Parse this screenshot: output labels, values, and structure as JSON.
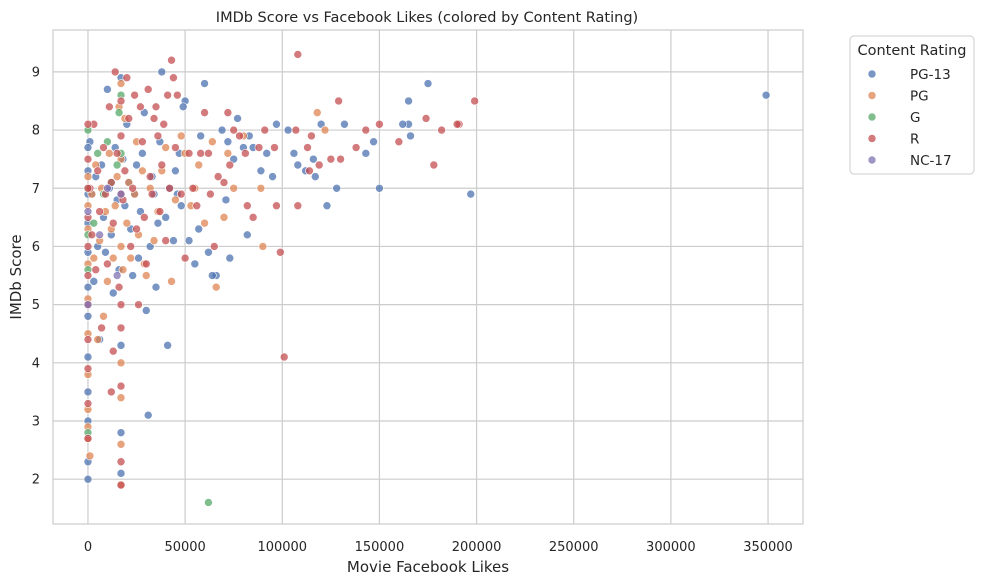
{
  "chart_data": {
    "type": "scatter",
    "title": "IMDb Score vs Facebook Likes (colored by Content Rating)",
    "xlabel": "Movie Facebook Likes",
    "ylabel": "IMDb Score",
    "xlim": [
      -18000,
      368000
    ],
    "ylim": [
      1.23,
      9.72
    ],
    "xticks": [
      0,
      50000,
      100000,
      150000,
      200000,
      250000,
      300000,
      350000
    ],
    "xtick_labels": [
      "0",
      "50000",
      "100000",
      "150000",
      "200000",
      "250000",
      "300000",
      "350000"
    ],
    "yticks": [
      2,
      3,
      4,
      5,
      6,
      7,
      8,
      9
    ],
    "ytick_labels": [
      "2",
      "3",
      "4",
      "5",
      "6",
      "7",
      "8",
      "9"
    ],
    "grid": true,
    "legend": {
      "title": "Content Rating",
      "placement": "outside-top-right"
    },
    "series": [
      {
        "name": "PG-13",
        "color": "#4c72b0",
        "points": [
          [
            349000,
            8.6
          ],
          [
            175000,
            8.8
          ],
          [
            165000,
            8.5
          ],
          [
            166000,
            7.9
          ],
          [
            165000,
            8.1
          ],
          [
            162000,
            8.1
          ],
          [
            150000,
            7.0
          ],
          [
            147000,
            7.8
          ],
          [
            197000,
            6.9
          ],
          [
            143000,
            7.6
          ],
          [
            132000,
            8.1
          ],
          [
            128000,
            7.0
          ],
          [
            123000,
            6.7
          ],
          [
            120000,
            8.1
          ],
          [
            117000,
            7.2
          ],
          [
            116000,
            7.5
          ],
          [
            112000,
            7.3
          ],
          [
            108000,
            7.4
          ],
          [
            106000,
            7.6
          ],
          [
            103000,
            8.0
          ],
          [
            97000,
            8.1
          ],
          [
            95000,
            7.2
          ],
          [
            92000,
            7.6
          ],
          [
            89000,
            7.3
          ],
          [
            85000,
            7.7
          ],
          [
            83000,
            7.9
          ],
          [
            82000,
            6.2
          ],
          [
            80000,
            7.7
          ],
          [
            77000,
            8.2
          ],
          [
            75000,
            7.5
          ],
          [
            72000,
            7.8
          ],
          [
            71000,
            6.8
          ],
          [
            73000,
            5.8
          ],
          [
            69000,
            8.0
          ],
          [
            66000,
            5.5
          ],
          [
            64000,
            5.5
          ],
          [
            62000,
            5.9
          ],
          [
            60000,
            8.8
          ],
          [
            58000,
            7.9
          ],
          [
            57000,
            6.3
          ],
          [
            55000,
            5.7
          ],
          [
            52000,
            6.1
          ],
          [
            50000,
            8.5
          ],
          [
            49000,
            8.4
          ],
          [
            48000,
            6.7
          ],
          [
            47000,
            7.6
          ],
          [
            46000,
            6.9
          ],
          [
            45000,
            7.3
          ],
          [
            44000,
            6.1
          ],
          [
            42000,
            7.0
          ],
          [
            41000,
            4.3
          ],
          [
            40000,
            6.5
          ],
          [
            38000,
            9.0
          ],
          [
            37000,
            7.8
          ],
          [
            36000,
            6.4
          ],
          [
            35000,
            5.3
          ],
          [
            34000,
            6.9
          ],
          [
            33000,
            7.2
          ],
          [
            32000,
            6.0
          ],
          [
            31000,
            3.1
          ],
          [
            30000,
            4.9
          ],
          [
            29000,
            8.3
          ],
          [
            28000,
            7.6
          ],
          [
            27000,
            6.6
          ],
          [
            26000,
            5.8
          ],
          [
            25000,
            7.4
          ],
          [
            24000,
            6.9
          ],
          [
            23000,
            5.5
          ],
          [
            22000,
            6.3
          ],
          [
            21000,
            7.1
          ],
          [
            20000,
            8.1
          ],
          [
            19000,
            6.7
          ],
          [
            18000,
            7.5
          ],
          [
            17000,
            2.8
          ],
          [
            17000,
            2.1
          ],
          [
            17000,
            4.3
          ],
          [
            17000,
            8.9
          ],
          [
            16000,
            5.6
          ],
          [
            15000,
            6.8
          ],
          [
            14000,
            7.7
          ],
          [
            13000,
            5.2
          ],
          [
            12000,
            6.2
          ],
          [
            11000,
            7.0
          ],
          [
            10000,
            8.7
          ],
          [
            9000,
            5.9
          ],
          [
            8000,
            6.5
          ],
          [
            7000,
            7.4
          ],
          [
            6000,
            4.4
          ],
          [
            5000,
            6.0
          ],
          [
            4000,
            7.2
          ],
          [
            3000,
            5.4
          ],
          [
            2000,
            6.9
          ],
          [
            1000,
            7.8
          ],
          [
            0,
            2.0
          ],
          [
            0,
            2.3
          ],
          [
            0,
            3.0
          ],
          [
            0,
            3.5
          ],
          [
            0,
            4.1
          ],
          [
            0,
            4.8
          ],
          [
            0,
            5.3
          ],
          [
            0,
            5.9
          ],
          [
            0,
            6.4
          ],
          [
            0,
            6.9
          ],
          [
            0,
            7.3
          ],
          [
            0,
            7.7
          ]
        ]
      },
      {
        "name": "PG",
        "color": "#dd8452",
        "points": [
          [
            122000,
            8.0
          ],
          [
            118000,
            8.3
          ],
          [
            90000,
            6.0
          ],
          [
            89000,
            7.0
          ],
          [
            80000,
            7.9
          ],
          [
            75000,
            7.0
          ],
          [
            72000,
            7.6
          ],
          [
            70000,
            6.5
          ],
          [
            66000,
            5.3
          ],
          [
            64000,
            7.8
          ],
          [
            60000,
            6.4
          ],
          [
            57000,
            7.4
          ],
          [
            55000,
            7.0
          ],
          [
            53000,
            6.7
          ],
          [
            50000,
            7.6
          ],
          [
            48000,
            7.9
          ],
          [
            45000,
            6.8
          ],
          [
            43000,
            5.4
          ],
          [
            40000,
            7.7
          ],
          [
            38000,
            7.3
          ],
          [
            36000,
            6.6
          ],
          [
            34000,
            6.1
          ],
          [
            32000,
            7.0
          ],
          [
            30000,
            5.5
          ],
          [
            29000,
            5.7
          ],
          [
            28000,
            7.3
          ],
          [
            26000,
            6.2
          ],
          [
            25000,
            7.8
          ],
          [
            24000,
            6.9
          ],
          [
            22000,
            5.8
          ],
          [
            21000,
            7.1
          ],
          [
            20000,
            6.4
          ],
          [
            19000,
            8.2
          ],
          [
            18000,
            5.6
          ],
          [
            17000,
            8.8
          ],
          [
            17000,
            3.4
          ],
          [
            17000,
            2.6
          ],
          [
            17000,
            1.9
          ],
          [
            17000,
            4.0
          ],
          [
            17000,
            6.0
          ],
          [
            17000,
            7.5
          ],
          [
            16000,
            8.4
          ],
          [
            15000,
            7.2
          ],
          [
            14000,
            6.7
          ],
          [
            13000,
            5.8
          ],
          [
            12000,
            6.3
          ],
          [
            11000,
            7.6
          ],
          [
            10000,
            5.4
          ],
          [
            9000,
            6.6
          ],
          [
            8000,
            4.8
          ],
          [
            7000,
            7.0
          ],
          [
            6000,
            6.1
          ],
          [
            5000,
            4.4
          ],
          [
            4000,
            7.4
          ],
          [
            3000,
            5.8
          ],
          [
            2000,
            6.9
          ],
          [
            1000,
            2.4
          ],
          [
            0,
            2.7
          ],
          [
            0,
            2.9
          ],
          [
            0,
            3.2
          ],
          [
            0,
            3.8
          ],
          [
            0,
            4.5
          ],
          [
            0,
            5.1
          ],
          [
            0,
            5.7
          ],
          [
            0,
            6.3
          ],
          [
            0,
            6.7
          ],
          [
            0,
            7.2
          ]
        ]
      },
      {
        "name": "G",
        "color": "#55a868",
        "points": [
          [
            62000,
            1.6
          ],
          [
            17000,
            8.6
          ],
          [
            17000,
            7.6
          ],
          [
            16000,
            8.3
          ],
          [
            15000,
            7.4
          ],
          [
            12000,
            7.1
          ],
          [
            10000,
            7.8
          ],
          [
            8000,
            6.9
          ],
          [
            5000,
            7.6
          ],
          [
            3000,
            6.4
          ],
          [
            0,
            8.0
          ],
          [
            0,
            7.0
          ],
          [
            0,
            6.2
          ],
          [
            0,
            5.6
          ],
          [
            0,
            2.8
          ]
        ]
      },
      {
        "name": "R",
        "color": "#c44e52",
        "points": [
          [
            108000,
            9.3
          ],
          [
            199000,
            8.5
          ],
          [
            191000,
            8.1
          ],
          [
            190000,
            8.1
          ],
          [
            182000,
            8.0
          ],
          [
            178000,
            7.4
          ],
          [
            174000,
            8.2
          ],
          [
            160000,
            7.8
          ],
          [
            150000,
            8.1
          ],
          [
            143000,
            8.0
          ],
          [
            138000,
            7.7
          ],
          [
            130000,
            7.5
          ],
          [
            129000,
            8.5
          ],
          [
            125000,
            7.5
          ],
          [
            119000,
            7.4
          ],
          [
            115000,
            7.9
          ],
          [
            114000,
            7.3
          ],
          [
            113000,
            7.7
          ],
          [
            108000,
            6.7
          ],
          [
            107000,
            8.0
          ],
          [
            101000,
            4.1
          ],
          [
            99000,
            5.9
          ],
          [
            97000,
            6.7
          ],
          [
            96000,
            7.7
          ],
          [
            91000,
            8.0
          ],
          [
            88000,
            7.7
          ],
          [
            85000,
            6.5
          ],
          [
            82000,
            6.7
          ],
          [
            81000,
            7.6
          ],
          [
            78000,
            7.9
          ],
          [
            75000,
            8.0
          ],
          [
            73000,
            7.4
          ],
          [
            72000,
            8.3
          ],
          [
            70000,
            7.1
          ],
          [
            67000,
            7.2
          ],
          [
            65000,
            6.0
          ],
          [
            63000,
            6.9
          ],
          [
            62000,
            7.6
          ],
          [
            60000,
            8.3
          ],
          [
            58000,
            7.6
          ],
          [
            56000,
            6.7
          ],
          [
            54000,
            7.0
          ],
          [
            52000,
            7.6
          ],
          [
            50000,
            5.8
          ],
          [
            48000,
            6.9
          ],
          [
            46000,
            8.6
          ],
          [
            45000,
            7.7
          ],
          [
            44000,
            8.9
          ],
          [
            43000,
            9.2
          ],
          [
            42000,
            7.0
          ],
          [
            41000,
            8.6
          ],
          [
            40000,
            6.1
          ],
          [
            39000,
            8.1
          ],
          [
            38000,
            7.4
          ],
          [
            37000,
            6.6
          ],
          [
            36000,
            7.9
          ],
          [
            35000,
            8.4
          ],
          [
            34000,
            8.2
          ],
          [
            33000,
            6.9
          ],
          [
            32000,
            7.2
          ],
          [
            31000,
            8.7
          ],
          [
            30000,
            5.7
          ],
          [
            29000,
            6.5
          ],
          [
            28000,
            7.8
          ],
          [
            27000,
            8.4
          ],
          [
            26000,
            5.0
          ],
          [
            25000,
            6.3
          ],
          [
            24000,
            8.6
          ],
          [
            23000,
            7.0
          ],
          [
            22000,
            6.0
          ],
          [
            21000,
            8.2
          ],
          [
            20000,
            8.9
          ],
          [
            19000,
            7.3
          ],
          [
            18000,
            6.8
          ],
          [
            17000,
            5.0
          ],
          [
            17000,
            4.6
          ],
          [
            17000,
            3.6
          ],
          [
            17000,
            1.9
          ],
          [
            17000,
            2.3
          ],
          [
            17000,
            6.9
          ],
          [
            17000,
            7.9
          ],
          [
            17000,
            8.5
          ],
          [
            16000,
            5.3
          ],
          [
            15000,
            7.6
          ],
          [
            14000,
            9.0
          ],
          [
            13000,
            6.4
          ],
          [
            12000,
            7.1
          ],
          [
            11000,
            8.4
          ],
          [
            10000,
            5.7
          ],
          [
            9000,
            6.9
          ],
          [
            8000,
            7.7
          ],
          [
            7000,
            4.6
          ],
          [
            6000,
            6.6
          ],
          [
            5000,
            7.3
          ],
          [
            4000,
            5.6
          ],
          [
            3000,
            8.1
          ],
          [
            2000,
            6.2
          ],
          [
            1000,
            7.0
          ],
          [
            12000,
            3.5
          ],
          [
            13000,
            4.2
          ],
          [
            0,
            2.7
          ],
          [
            0,
            3.3
          ],
          [
            0,
            3.9
          ],
          [
            0,
            4.4
          ],
          [
            0,
            5.0
          ],
          [
            0,
            5.5
          ],
          [
            0,
            6.0
          ],
          [
            0,
            6.5
          ],
          [
            0,
            7.0
          ],
          [
            0,
            7.5
          ],
          [
            0,
            8.1
          ]
        ]
      },
      {
        "name": "NC-17",
        "color": "#8172b3",
        "points": [
          [
            17000,
            6.9
          ],
          [
            15000,
            5.5
          ],
          [
            10000,
            7.0
          ],
          [
            6000,
            6.2
          ],
          [
            0,
            6.6
          ],
          [
            0,
            5.0
          ]
        ]
      }
    ]
  }
}
